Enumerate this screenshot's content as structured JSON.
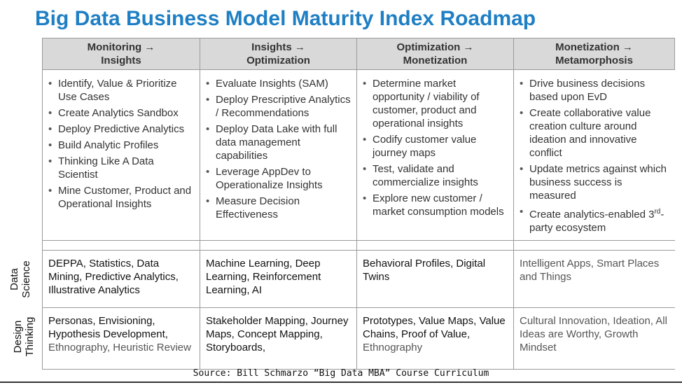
{
  "title": "Big Data Business Model Maturity Index Roadmap",
  "columns": [
    {
      "line1": "Monitoring →",
      "line2": "Insights"
    },
    {
      "line1": "Insights →",
      "line2": "Optimization"
    },
    {
      "line1": "Optimization →",
      "line2": "Monetization"
    },
    {
      "line1": "Monetization →",
      "line2": "Metamorphosis"
    }
  ],
  "bullets": [
    [
      "Identify, Value & Prioritize Use Cases",
      "Create Analytics Sandbox",
      "Deploy Predictive Analytics",
      "Build Analytic Profiles",
      "Thinking Like A Data Scientist",
      "Mine Customer, Product and Operational Insights"
    ],
    [
      "Evaluate Insights (SAM)",
      "Deploy Prescriptive Analytics / Recommendations",
      "Deploy Data Lake with full data management capabilities",
      "Leverage AppDev to Operationalize Insights",
      "Measure Decision Effectiveness"
    ],
    [
      "Determine market opportunity / viability of customer, product and operational insights",
      "Codify customer value journey maps",
      "Test, validate and commercialize insights",
      "Explore new customer / market consumption models"
    ],
    [
      "Drive business decisions based upon EvD",
      "Create collaborative value creation culture around ideation and innovative conflict",
      "Update metrics against which business success is measured",
      "Create analytics-enabled 3rd-party ecosystem"
    ]
  ],
  "rows": {
    "data_science": {
      "label_line1": "Data",
      "label_line2": "Science",
      "cells": [
        {
          "dark": "DEPPA, Statistics, Data Mining, Predictive Analytics, Illustrative Analytics",
          "gray": ""
        },
        {
          "dark": "Machine Learning, Deep Learning, Reinforcement Learning, AI",
          "gray": ""
        },
        {
          "dark": "Behavioral Profiles, Digital Twins",
          "gray": ""
        },
        {
          "dark": "",
          "gray": "Intelligent Apps, Smart Places and Things"
        }
      ]
    },
    "design_thinking": {
      "label_line1": "Design",
      "label_line2": "Thinking",
      "cells": [
        {
          "dark": "Personas, Envisioning, Hypothesis Development, ",
          "gray": "Ethnography, Heuristic Review"
        },
        {
          "dark": "Stakeholder Mapping, Journey Maps, Concept Mapping, Storyboards,",
          "gray": ""
        },
        {
          "dark": "Prototypes, Value Maps, Value Chains, Proof of Value, ",
          "gray": "Ethnography"
        },
        {
          "dark": "Cultural Innovation, Ideation, All Ideas are Worthy, Growth Mindset",
          "gray": ""
        }
      ]
    }
  },
  "source": "Source: Bill Schmarzo “Big Data MBA” Course Curriculum"
}
